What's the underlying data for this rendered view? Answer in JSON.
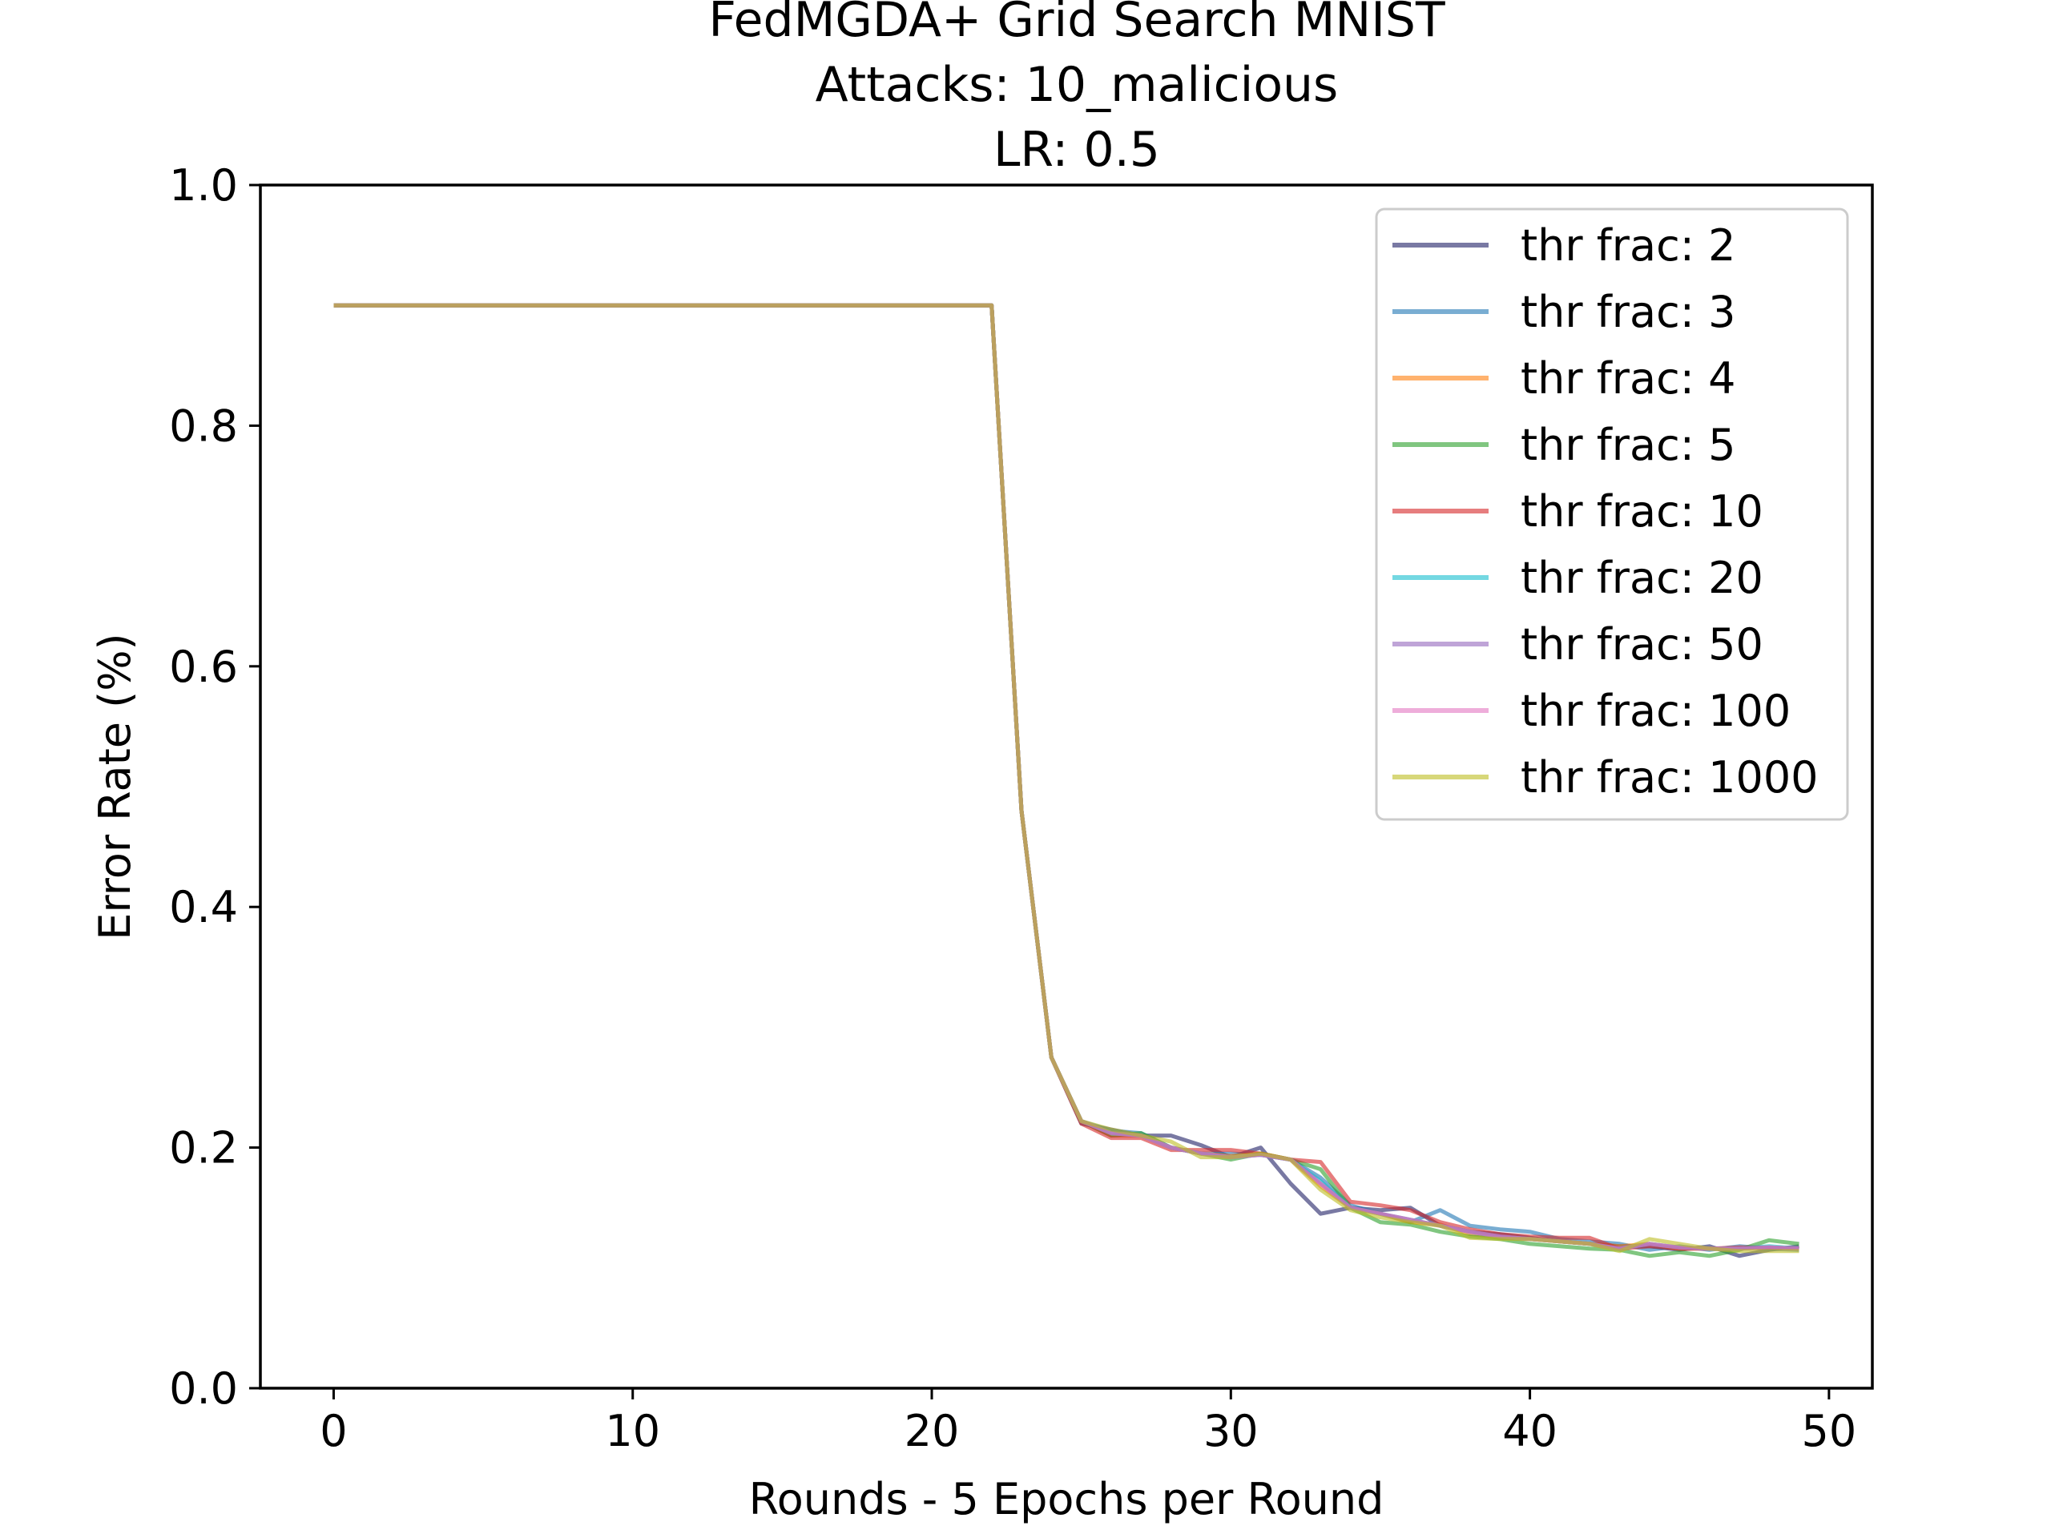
{
  "chart_data": {
    "type": "line",
    "title": "FedMGDA+ Grid Search MNIST",
    "subtitle": "Attacks: 10_malicious",
    "subtitle2": "LR: 0.5",
    "xlabel": "Rounds - 5 Epochs per Round",
    "ylabel": "Error Rate (%)",
    "xlim": [
      -2.45,
      51.45
    ],
    "ylim": [
      0.0,
      1.0
    ],
    "xticks": [
      0,
      10,
      20,
      30,
      40,
      50
    ],
    "yticks": [
      0.0,
      0.2,
      0.4,
      0.6,
      0.8,
      1.0
    ],
    "xtick_labels": [
      "0",
      "10",
      "20",
      "30",
      "40",
      "50"
    ],
    "ytick_labels": [
      "0.0",
      "0.2",
      "0.4",
      "0.6",
      "0.8",
      "1.0"
    ],
    "legend_position": "top-right",
    "x": [
      0,
      1,
      2,
      3,
      4,
      5,
      6,
      7,
      8,
      9,
      10,
      11,
      12,
      13,
      14,
      15,
      16,
      17,
      18,
      19,
      20,
      21,
      22,
      23,
      24,
      25,
      26,
      27,
      28,
      29,
      30,
      31,
      32,
      33,
      34,
      35,
      36,
      37,
      38,
      39,
      40,
      41,
      42,
      43,
      44,
      45,
      46,
      47,
      48,
      49
    ],
    "series": [
      {
        "name": "thr frac: 2",
        "color": "#1f1f66",
        "opacity": 0.6,
        "values": [
          0.9,
          0.9,
          0.9,
          0.9,
          0.9,
          0.9,
          0.9,
          0.9,
          0.9,
          0.9,
          0.9,
          0.9,
          0.9,
          0.9,
          0.9,
          0.9,
          0.9,
          0.9,
          0.9,
          0.9,
          0.9,
          0.9,
          0.9,
          0.48,
          0.275,
          0.22,
          0.215,
          0.21,
          0.21,
          0.202,
          0.192,
          0.2,
          0.17,
          0.145,
          0.15,
          0.148,
          0.15,
          0.135,
          0.13,
          0.128,
          0.125,
          0.122,
          0.12,
          0.118,
          0.118,
          0.115,
          0.118,
          0.11,
          0.115,
          0.118
        ]
      },
      {
        "name": "thr frac: 3",
        "color": "#1f77b4",
        "opacity": 0.6,
        "values": [
          0.9,
          0.9,
          0.9,
          0.9,
          0.9,
          0.9,
          0.9,
          0.9,
          0.9,
          0.9,
          0.9,
          0.9,
          0.9,
          0.9,
          0.9,
          0.9,
          0.9,
          0.9,
          0.9,
          0.9,
          0.9,
          0.9,
          0.9,
          0.48,
          0.275,
          0.222,
          0.214,
          0.212,
          0.2,
          0.195,
          0.195,
          0.194,
          0.19,
          0.175,
          0.152,
          0.145,
          0.138,
          0.148,
          0.135,
          0.132,
          0.13,
          0.124,
          0.122,
          0.12,
          0.115,
          0.118,
          0.115,
          0.118,
          0.116,
          0.115
        ]
      },
      {
        "name": "thr frac: 4",
        "color": "#ff7f0e",
        "opacity": 0.6,
        "values": [
          0.9,
          0.9,
          0.9,
          0.9,
          0.9,
          0.9,
          0.9,
          0.9,
          0.9,
          0.9,
          0.9,
          0.9,
          0.9,
          0.9,
          0.9,
          0.9,
          0.9,
          0.9,
          0.9,
          0.9,
          0.9,
          0.9,
          0.9,
          0.48,
          0.275,
          0.222,
          0.21,
          0.21,
          0.2,
          0.195,
          0.193,
          0.195,
          0.19,
          0.168,
          0.15,
          0.145,
          0.138,
          0.136,
          0.128,
          0.125,
          0.124,
          0.122,
          0.12,
          0.118,
          0.12,
          0.116,
          0.116,
          0.116,
          0.117,
          0.116
        ]
      },
      {
        "name": "thr frac: 5",
        "color": "#2ca02c",
        "opacity": 0.6,
        "values": [
          0.9,
          0.9,
          0.9,
          0.9,
          0.9,
          0.9,
          0.9,
          0.9,
          0.9,
          0.9,
          0.9,
          0.9,
          0.9,
          0.9,
          0.9,
          0.9,
          0.9,
          0.9,
          0.9,
          0.9,
          0.9,
          0.9,
          0.9,
          0.48,
          0.275,
          0.222,
          0.21,
          0.212,
          0.2,
          0.195,
          0.19,
          0.195,
          0.19,
          0.182,
          0.15,
          0.138,
          0.136,
          0.13,
          0.126,
          0.124,
          0.12,
          0.118,
          0.116,
          0.115,
          0.11,
          0.113,
          0.11,
          0.115,
          0.123,
          0.12
        ]
      },
      {
        "name": "thr frac: 10",
        "color": "#d62728",
        "opacity": 0.6,
        "values": [
          0.9,
          0.9,
          0.9,
          0.9,
          0.9,
          0.9,
          0.9,
          0.9,
          0.9,
          0.9,
          0.9,
          0.9,
          0.9,
          0.9,
          0.9,
          0.9,
          0.9,
          0.9,
          0.9,
          0.9,
          0.9,
          0.9,
          0.9,
          0.48,
          0.275,
          0.22,
          0.208,
          0.208,
          0.198,
          0.198,
          0.198,
          0.195,
          0.19,
          0.188,
          0.155,
          0.152,
          0.148,
          0.138,
          0.132,
          0.128,
          0.126,
          0.125,
          0.125,
          0.116,
          0.118,
          0.116,
          0.116,
          0.117,
          0.117,
          0.116
        ]
      },
      {
        "name": "thr frac: 20",
        "color": "#17becf",
        "opacity": 0.6,
        "values": [
          0.9,
          0.9,
          0.9,
          0.9,
          0.9,
          0.9,
          0.9,
          0.9,
          0.9,
          0.9,
          0.9,
          0.9,
          0.9,
          0.9,
          0.9,
          0.9,
          0.9,
          0.9,
          0.9,
          0.9,
          0.9,
          0.9,
          0.9,
          0.48,
          0.275,
          0.222,
          0.212,
          0.21,
          0.2,
          0.195,
          0.192,
          0.194,
          0.19,
          0.172,
          0.15,
          0.145,
          0.14,
          0.135,
          0.13,
          0.126,
          0.124,
          0.122,
          0.12,
          0.116,
          0.12,
          0.117,
          0.116,
          0.116,
          0.118,
          0.116
        ]
      },
      {
        "name": "thr frac: 50",
        "color": "#9467bd",
        "opacity": 0.6,
        "values": [
          0.9,
          0.9,
          0.9,
          0.9,
          0.9,
          0.9,
          0.9,
          0.9,
          0.9,
          0.9,
          0.9,
          0.9,
          0.9,
          0.9,
          0.9,
          0.9,
          0.9,
          0.9,
          0.9,
          0.9,
          0.9,
          0.9,
          0.9,
          0.48,
          0.275,
          0.222,
          0.212,
          0.21,
          0.2,
          0.195,
          0.192,
          0.194,
          0.19,
          0.17,
          0.15,
          0.145,
          0.14,
          0.135,
          0.13,
          0.126,
          0.124,
          0.122,
          0.12,
          0.116,
          0.12,
          0.117,
          0.116,
          0.116,
          0.117,
          0.116
        ]
      },
      {
        "name": "thr frac: 100",
        "color": "#e377c2",
        "opacity": 0.6,
        "values": [
          0.9,
          0.9,
          0.9,
          0.9,
          0.9,
          0.9,
          0.9,
          0.9,
          0.9,
          0.9,
          0.9,
          0.9,
          0.9,
          0.9,
          0.9,
          0.9,
          0.9,
          0.9,
          0.9,
          0.9,
          0.9,
          0.9,
          0.9,
          0.48,
          0.275,
          0.222,
          0.212,
          0.21,
          0.2,
          0.195,
          0.192,
          0.194,
          0.19,
          0.17,
          0.15,
          0.145,
          0.14,
          0.135,
          0.13,
          0.126,
          0.124,
          0.122,
          0.12,
          0.116,
          0.12,
          0.117,
          0.116,
          0.116,
          0.117,
          0.116
        ]
      },
      {
        "name": "thr frac: 1000",
        "color": "#bcbd22",
        "opacity": 0.6,
        "values": [
          0.9,
          0.9,
          0.9,
          0.9,
          0.9,
          0.9,
          0.9,
          0.9,
          0.9,
          0.9,
          0.9,
          0.9,
          0.9,
          0.9,
          0.9,
          0.9,
          0.9,
          0.9,
          0.9,
          0.9,
          0.9,
          0.9,
          0.9,
          0.48,
          0.275,
          0.222,
          0.215,
          0.21,
          0.205,
          0.192,
          0.192,
          0.195,
          0.19,
          0.165,
          0.148,
          0.142,
          0.138,
          0.135,
          0.125,
          0.124,
          0.124,
          0.122,
          0.12,
          0.114,
          0.124,
          0.12,
          0.116,
          0.114,
          0.114,
          0.114
        ]
      }
    ]
  }
}
